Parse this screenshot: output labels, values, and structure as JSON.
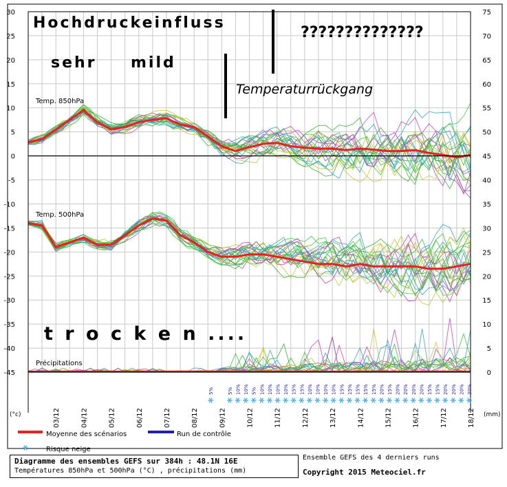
{
  "chart_data": {
    "type": "line",
    "left_axis": {
      "unit": "(°c)",
      "ticks": [
        30,
        25,
        20,
        15,
        10,
        5,
        0,
        -5,
        -10,
        -15,
        -20,
        -25,
        -30,
        -35,
        -40,
        -45
      ],
      "ylim": [
        -45,
        30
      ]
    },
    "right_axis": {
      "unit": "(mm)",
      "ticks": [
        75,
        70,
        65,
        60,
        55,
        50,
        45,
        40,
        35,
        30,
        25,
        20,
        15,
        10,
        5,
        0
      ],
      "ylim": [
        0,
        75
      ]
    },
    "x_labels": [
      "03/12",
      "04/12",
      "05/12",
      "06/12",
      "07/12",
      "08/12",
      "09/12",
      "10/12",
      "11/12",
      "12/12",
      "13/12",
      "14/12",
      "15/12",
      "16/12",
      "17/12",
      "18/12"
    ],
    "panels": {
      "t850": {
        "label": "Temp. 850hPa"
      },
      "t500": {
        "label": "Temp. 500hPa"
      },
      "precip": {
        "label": "Précipitations"
      }
    },
    "series": [
      {
        "name": "Moyenne des scénarios",
        "color": "#e8211a",
        "panel": "t850",
        "x": [
          2.0,
          2.5,
          3.0,
          3.5,
          4.0,
          4.5,
          5.0,
          5.5,
          6.0,
          6.5,
          7.0,
          7.5,
          8.0,
          8.5,
          9.0,
          9.5,
          10.0,
          10.5,
          11.0,
          11.5,
          12.0,
          12.5,
          13.0,
          13.5,
          14.0,
          14.5,
          15.0,
          15.5,
          16.0,
          16.5,
          17.0,
          17.5,
          18.0
        ],
        "y": [
          2.8,
          3.5,
          5.5,
          7.5,
          9.5,
          7.0,
          5.5,
          6.0,
          7.0,
          7.5,
          7.8,
          6.5,
          6.0,
          4.0,
          2.0,
          1.0,
          1.8,
          2.5,
          2.7,
          2.0,
          1.7,
          1.5,
          1.5,
          1.2,
          1.5,
          1.3,
          1.0,
          1.0,
          1.2,
          0.6,
          0.2,
          -0.3,
          0.2
        ]
      },
      {
        "name": "Moyenne des scénarios",
        "color": "#e8211a",
        "panel": "t500",
        "x": [
          2.0,
          2.5,
          3.0,
          3.5,
          4.0,
          4.5,
          5.0,
          5.5,
          6.0,
          6.5,
          7.0,
          7.5,
          8.0,
          8.5,
          9.0,
          9.5,
          10.0,
          10.5,
          11.0,
          11.5,
          12.0,
          12.5,
          13.0,
          13.5,
          14.0,
          14.5,
          15.0,
          15.5,
          16.0,
          16.5,
          17.0,
          17.5,
          18.0
        ],
        "y": [
          -14,
          -14.5,
          -19,
          -18,
          -17,
          -18.5,
          -18.5,
          -16.5,
          -14.5,
          -13,
          -13.5,
          -16.5,
          -18,
          -20,
          -21,
          -21,
          -20.5,
          -20.5,
          -21,
          -21.5,
          -22,
          -22.5,
          -22.5,
          -23,
          -22.5,
          -23,
          -23,
          -23,
          -23,
          -23.5,
          -23.5,
          -23,
          -22.5
        ]
      }
    ],
    "legend": [
      {
        "name": "Moyenne des scénarios",
        "color": "#e8211a"
      },
      {
        "name": "Run de contrôle",
        "color": "#1f1fb8"
      },
      {
        "name": "Risque neige",
        "color": "#55b3e8"
      }
    ],
    "snow_risk_pct": [
      "5%",
      "5%",
      "10%",
      "10%",
      "5%",
      "10%",
      "10%",
      "10%",
      "10%",
      "15%",
      "15%",
      "10%",
      "10%",
      "10%",
      "10%",
      "15%",
      "15%",
      "15%",
      "15%",
      "15%",
      "20%",
      "15%",
      "20%",
      "20%",
      "20%",
      "20%",
      "15%",
      "15%",
      "20%",
      "20%",
      "20%",
      "30%"
    ],
    "annotations": {
      "hochdruck": "Hochdruckeinfluss",
      "sehr": "sehr",
      "mild": "mild",
      "questions": "??????????????",
      "rueckgang": "Temperaturrückgang",
      "trocken": "t r o c k e n ...."
    },
    "grid": true
  },
  "footer": {
    "title": "Diagramme des ensembles GEFS sur 384h : 48.1N 16E",
    "subtitle": "Températures 850hPa et 500hPa (°C) , précipitations (mm)",
    "runs": "Ensemble GEFS des 4 derniers runs",
    "copyright": "Copyright 2015 Meteociel.fr"
  },
  "colors": {
    "grid": "#c8c8c8",
    "axis": "#000000",
    "members": [
      "#2fae2f",
      "#c23bc2",
      "#c9c12a",
      "#2aa0c9",
      "#35c435"
    ]
  }
}
